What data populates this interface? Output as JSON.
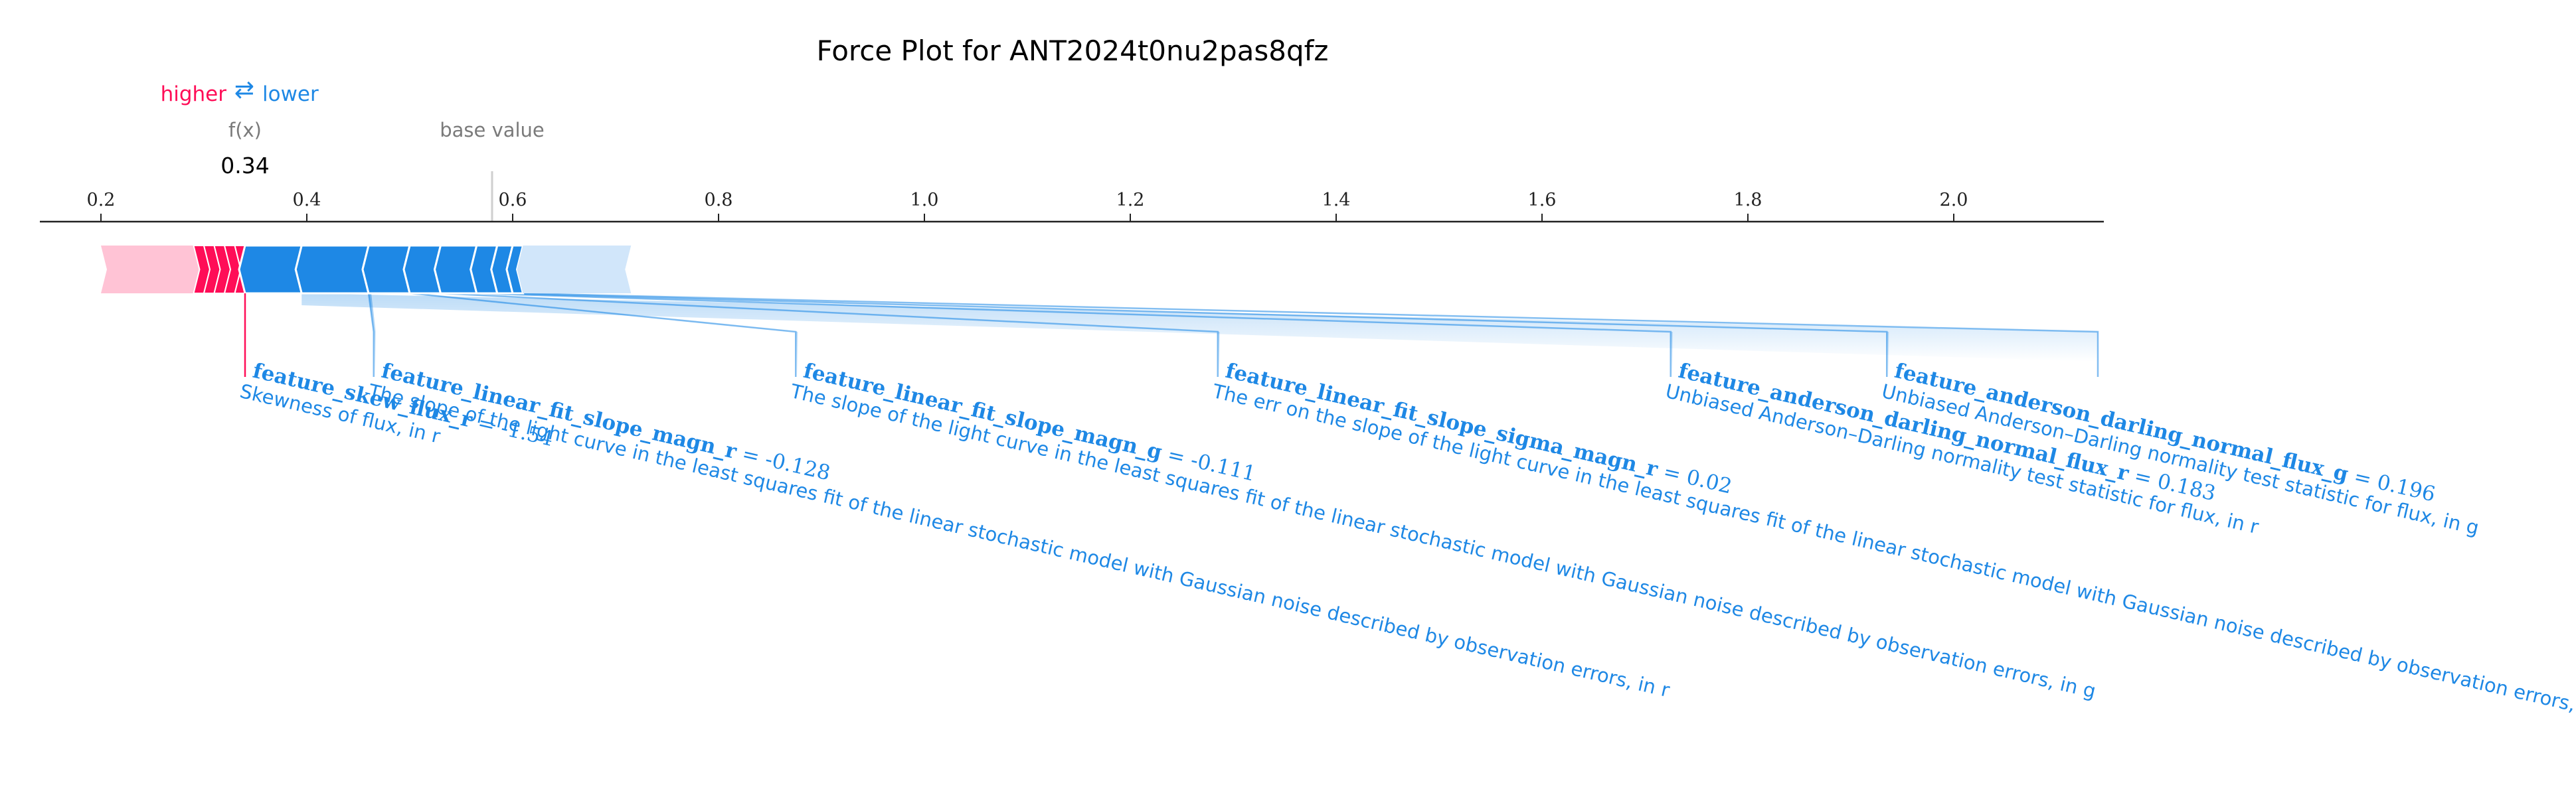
{
  "chart_data": {
    "type": "force",
    "title": "Force Plot for ANT2024t0nu2pas8qfz",
    "legend": {
      "higher": "higher",
      "lower": "lower",
      "arrow": "⇄"
    },
    "output_value": 0.34,
    "output_label": "f(x)",
    "output_value_text": "0.34",
    "base_value": 0.58,
    "base_value_label": "base value",
    "x_ticks": [
      0.2,
      0.4,
      0.6,
      0.8,
      1.0,
      1.2,
      1.4,
      1.6,
      1.8,
      2.0
    ],
    "x_tick_labels": [
      "0.2",
      "0.4",
      "0.6",
      "0.8",
      "1.0",
      "1.2",
      "1.4",
      "1.6",
      "1.8",
      "2.0"
    ],
    "xlim": [
      0.14,
      2.14
    ],
    "colors": {
      "positive": "#ff0d57",
      "negative": "#1e88e5",
      "positive_light": "#ffc3d5",
      "negative_light": "#d1e6fa"
    },
    "negative_bar": {
      "start": 0.34,
      "end": 0.61,
      "boundaries": [
        0.395,
        0.46,
        0.5,
        0.53,
        0.565,
        0.585,
        0.6,
        0.61
      ],
      "fade_end": 0.715
    },
    "positive_bar": {
      "start": 0.2,
      "end": 0.34,
      "boundaries": [
        0.29,
        0.3,
        0.31,
        0.32,
        0.33,
        0.34
      ],
      "fade_start": 0.2
    },
    "features": [
      {
        "name": "feature_skew_flux_r",
        "value": "-1.54",
        "description": "Skewness of flux, in r",
        "bar_end": 0.34,
        "axis_x": 0.34,
        "sign": "negative"
      },
      {
        "name": "feature_linear_fit_slope_magn_r",
        "value": "-0.128",
        "description": "The slope of the light curve in the least squares fit of the linear stochastic model with Gaussian noise described by observation errors, in r",
        "bar_end": 0.46,
        "axis_x": 0.465,
        "sign": "negative"
      },
      {
        "name": "feature_linear_fit_slope_magn_g",
        "value": "-0.111",
        "description": "The slope of the light curve in the least squares fit of the linear stochastic model with Gaussian noise described by observation errors, in g",
        "bar_end": 0.5,
        "axis_x": 0.875,
        "sign": "negative"
      },
      {
        "name": "feature_linear_fit_slope_sigma_magn_r",
        "value": "0.02",
        "description": "The err on the slope of the light curve in the least squares fit of the linear stochastic model with Gaussian noise described by observation errors, in r",
        "bar_end": 0.53,
        "axis_x": 1.285,
        "sign": "negative"
      },
      {
        "name": "feature_anderson_darling_normal_flux_r",
        "value": "0.183",
        "description": "Unbiased Anderson–Darling normality test statistic for flux, in r",
        "bar_end": 0.565,
        "axis_x": 1.725,
        "sign": "negative"
      },
      {
        "name": "feature_anderson_darling_normal_flux_g",
        "value": "0.196",
        "description": "Unbiased Anderson–Darling normality test statistic for flux, in g",
        "bar_end": 0.585,
        "axis_x": 1.935,
        "sign": "negative"
      }
    ],
    "extra_connector_axis_x": 2.14
  }
}
